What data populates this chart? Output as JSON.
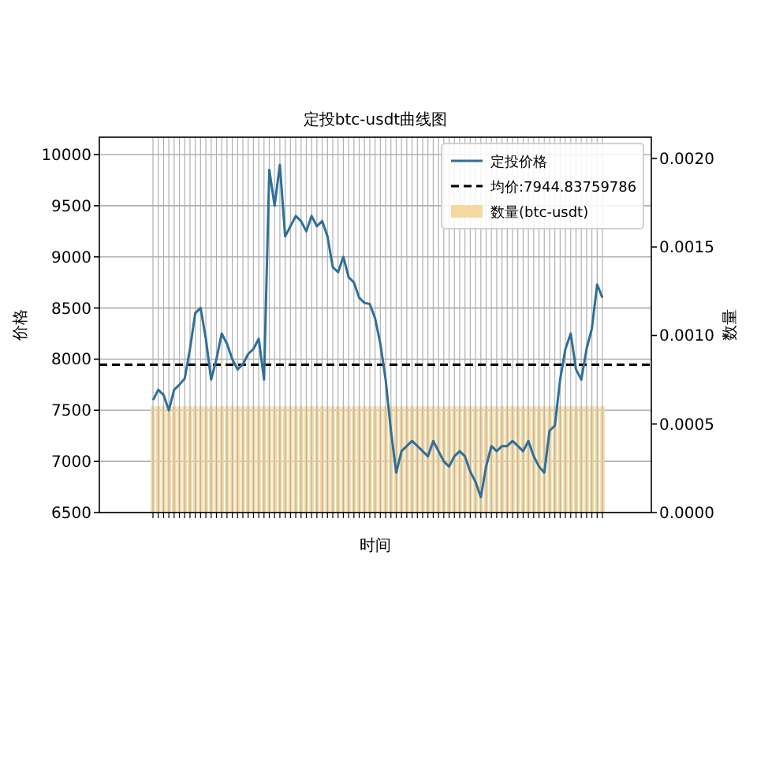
{
  "chart_data": {
    "type": "bar",
    "title": "定投btc-usdt曲线图",
    "xlabel": "时间",
    "ylabel": "价格",
    "y2label": "数量",
    "categories": [
      null,
      null,
      null,
      null,
      null,
      null,
      null,
      null,
      null,
      null,
      null,
      null,
      null,
      null,
      null,
      null,
      null,
      null,
      null,
      null,
      null,
      null,
      null,
      null,
      null,
      null,
      null,
      null,
      null,
      null,
      null,
      null,
      null,
      null,
      null,
      null,
      null,
      null,
      null,
      null,
      null,
      null,
      null,
      null,
      null,
      null,
      null,
      null,
      null,
      null,
      null,
      null,
      null,
      null,
      null,
      null,
      null,
      null,
      null,
      null,
      null,
      null,
      null,
      null,
      null,
      null,
      null,
      null,
      null,
      null,
      null,
      null,
      null,
      null,
      null,
      null,
      null,
      null,
      null,
      null,
      null,
      null,
      null,
      null,
      null,
      null
    ],
    "series": [
      {
        "name": "定投价格",
        "type": "line",
        "color": "#2f6f99",
        "values": [
          7600,
          7700,
          7650,
          7500,
          7700,
          7750,
          7810,
          8100,
          8450,
          8500,
          8200,
          7800,
          8000,
          8250,
          8150,
          8000,
          7900,
          7950,
          8050,
          8100,
          8200,
          7800,
          9850,
          9500,
          9900,
          9200,
          9300,
          9400,
          9350,
          9250,
          9400,
          9300,
          9350,
          9200,
          8900,
          8850,
          9000,
          8800,
          8750,
          8600,
          8550,
          8540,
          8400,
          8150,
          7800,
          7300,
          6890,
          7100,
          7150,
          7200,
          7150,
          7100,
          7050,
          7200,
          7100,
          7000,
          6950,
          7050,
          7100,
          7050,
          6900,
          6800,
          6650,
          6950,
          7150,
          7100,
          7150,
          7150,
          7200,
          7150,
          7100,
          7200,
          7050,
          6950,
          6890,
          7300,
          7350,
          7800,
          8100,
          8250,
          7900,
          7800,
          8100,
          8300,
          8730,
          8600
        ]
      },
      {
        "name": "数量(btc-usdt)",
        "axis": "y2",
        "color": "#f5d9a0",
        "values": [
          0.0006,
          0.0006,
          0.0006,
          0.0006,
          0.0006,
          0.0006,
          0.0006,
          0.0006,
          0.0006,
          0.0006,
          0.0006,
          0.0006,
          0.0006,
          0.0006,
          0.0006,
          0.0006,
          0.0006,
          0.0006,
          0.0006,
          0.0006,
          0.0006,
          0.0006,
          0.0006,
          0.0006,
          0.0006,
          0.0006,
          0.0006,
          0.0006,
          0.0006,
          0.0006,
          0.0006,
          0.0006,
          0.0006,
          0.0006,
          0.0006,
          0.0006,
          0.0006,
          0.0006,
          0.0006,
          0.0006,
          0.0006,
          0.0006,
          0.0006,
          0.0006,
          0.0006,
          0.0006,
          0.0006,
          0.0006,
          0.0006,
          0.0006,
          0.0006,
          0.0006,
          0.0006,
          0.0006,
          0.0006,
          0.0006,
          0.0006,
          0.0006,
          0.0006,
          0.0006,
          0.0006,
          0.0006,
          0.0006,
          0.0006,
          0.0006,
          0.0006,
          0.0006,
          0.0006,
          0.0006,
          0.0006,
          0.0006,
          0.0006,
          0.0006,
          0.0006,
          0.0006,
          0.0006,
          0.0006,
          0.0006,
          0.0006,
          0.0006,
          0.0006,
          0.0006,
          0.0006,
          0.0006,
          0.0006,
          0.0006
        ]
      }
    ],
    "ref_lines": [
      {
        "axis": "y",
        "value": 7944.83759786,
        "label": "均价:7944.83759786",
        "color": "#000000",
        "line_style": "dashed"
      }
    ],
    "ylim": [
      6500,
      10170
    ],
    "yticks": [
      6500,
      7000,
      7500,
      8000,
      8500,
      9000,
      9500,
      10000
    ],
    "y2lim": [
      0,
      0.00212
    ],
    "y2ticks": [
      {
        "value": 0,
        "label": "0.0000"
      },
      {
        "value": 0.0005,
        "label": "0.0005"
      },
      {
        "value": 0.001,
        "label": "0.0010"
      },
      {
        "value": 0.0015,
        "label": "0.0015"
      },
      {
        "value": 0.002,
        "label": "0.0020"
      }
    ],
    "grid": true,
    "legend": "top right"
  }
}
